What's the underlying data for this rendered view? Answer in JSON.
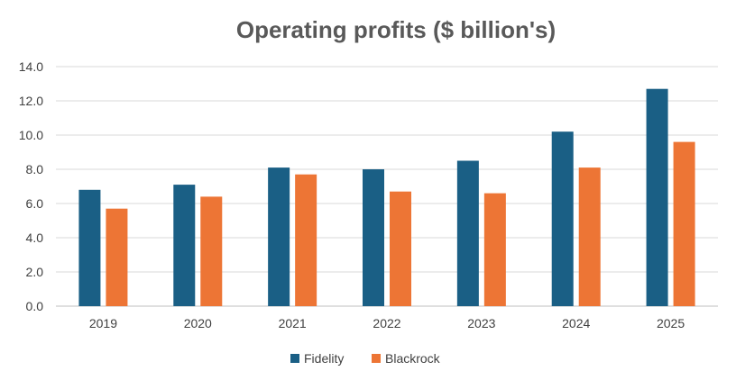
{
  "chart_data": {
    "type": "bar",
    "title": "Operating profits ($ billion's)",
    "xlabel": "",
    "ylabel": "",
    "categories": [
      "2019",
      "2020",
      "2021",
      "2022",
      "2023",
      "2024",
      "2025"
    ],
    "series": [
      {
        "name": "Fidelity",
        "color": "#1a5f85",
        "values": [
          6.8,
          7.1,
          8.1,
          8.0,
          8.5,
          10.2,
          12.7
        ]
      },
      {
        "name": "Blackrock",
        "color": "#ed7535",
        "values": [
          5.7,
          6.4,
          7.7,
          6.7,
          6.6,
          8.1,
          9.6
        ]
      }
    ],
    "ylim": [
      0,
      14
    ],
    "yticks": [
      "0.0",
      "2.0",
      "4.0",
      "6.0",
      "8.0",
      "10.0",
      "12.0",
      "14.0"
    ],
    "grid": true,
    "legend_position": "bottom"
  }
}
